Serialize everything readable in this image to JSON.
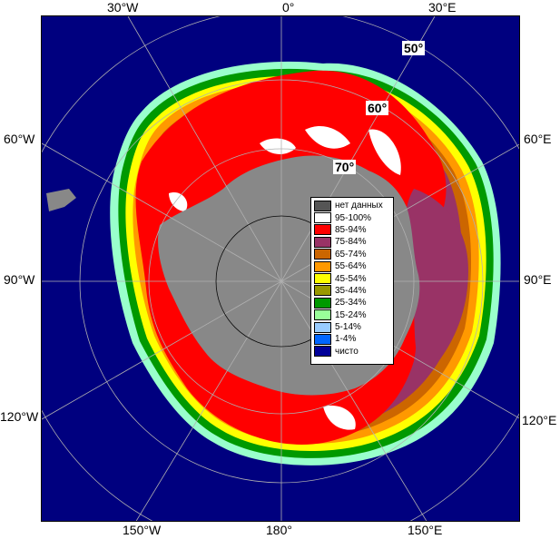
{
  "map": {
    "top_labels": [
      "30°W",
      "0°",
      "30°E"
    ],
    "left_labels": [
      "60°W",
      "90°W",
      "120°W"
    ],
    "right_labels": [
      "60°E",
      "90°E",
      "120°E"
    ],
    "bottom_labels": [
      "150°W",
      "180°",
      "150°E"
    ],
    "latitude_labels": [
      "50°",
      "60°",
      "70°"
    ]
  },
  "legend": {
    "items": [
      {
        "label": "нет данных",
        "color": "#555555"
      },
      {
        "label": "95-100%",
        "color": "#ffffff"
      },
      {
        "label": "85-94%",
        "color": "#ff0000"
      },
      {
        "label": "75-84%",
        "color": "#993366"
      },
      {
        "label": "65-74%",
        "color": "#cc6600"
      },
      {
        "label": "55-64%",
        "color": "#ff9900"
      },
      {
        "label": "45-54%",
        "color": "#ffff00"
      },
      {
        "label": "35-44%",
        "color": "#999900"
      },
      {
        "label": "25-34%",
        "color": "#009900"
      },
      {
        "label": "15-24%",
        "color": "#99ff99"
      },
      {
        "label": "5-14%",
        "color": "#99ccff"
      },
      {
        "label": "1-4%",
        "color": "#0066ff"
      },
      {
        "label": "чисто",
        "color": "#000099"
      }
    ]
  },
  "colors": {
    "ocean": "#00007f",
    "land": "#888888",
    "grid": "#b0b0b0"
  }
}
